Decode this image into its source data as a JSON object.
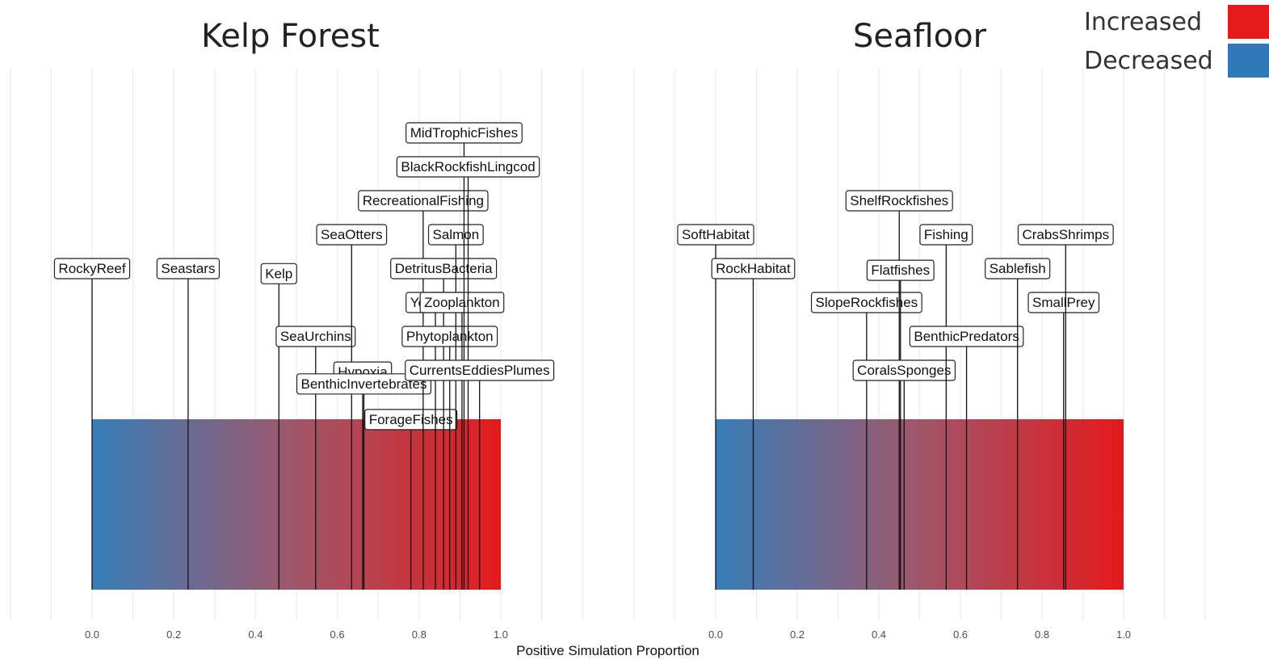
{
  "colors": {
    "increased": "#e41a1c",
    "decreased": "#377eb8",
    "grid": "#ebebeb",
    "line": "#111111"
  },
  "legend": {
    "placement": "top-right",
    "items": [
      {
        "label": "Increased",
        "color": "#e41a1c"
      },
      {
        "label": "Decreased",
        "color": "#2f78b8"
      }
    ]
  },
  "x_axis_title": "Positive Simulation Proportion",
  "chart_data": [
    {
      "type": "bar",
      "title": "Kelp Forest",
      "xlabel": "Positive Simulation Proportion",
      "xlim": [
        0,
        1
      ],
      "ticks": [
        "0.0",
        "0.2",
        "0.4",
        "0.6",
        "0.8",
        "1.0"
      ],
      "grid": true,
      "series": [
        {
          "name": "RockyReef",
          "x": 0.0,
          "level": 4
        },
        {
          "name": "Seastars",
          "x": 0.235,
          "level": 4
        },
        {
          "name": "Kelp",
          "x": 0.457,
          "level": 3.85
        },
        {
          "name": "SeaUrchins",
          "x": 0.547,
          "level": 2
        },
        {
          "name": "SeaOtters",
          "x": 0.635,
          "level": 5
        },
        {
          "name": "Hypoxia",
          "x": 0.662,
          "level": 0.95
        },
        {
          "name": "BenthicInvertebrates",
          "x": 0.665,
          "level": 0.6
        },
        {
          "name": "ForageFishes",
          "x": 0.78,
          "level": -0.45
        },
        {
          "name": "RecreationalFishing",
          "x": 0.81,
          "level": 6
        },
        {
          "name": "YoYFish",
          "x": 0.84,
          "level": 3
        },
        {
          "name": "DetritusBacteria",
          "x": 0.86,
          "level": 4
        },
        {
          "name": "Phytoplankton",
          "x": 0.875,
          "level": 2
        },
        {
          "name": "Salmon",
          "x": 0.89,
          "level": 5
        },
        {
          "name": "Zooplankton",
          "x": 0.905,
          "level": 3
        },
        {
          "name": "MidTrophicFishes",
          "x": 0.91,
          "level": 8
        },
        {
          "name": "BlackRockfishLingcod",
          "x": 0.92,
          "level": 7
        },
        {
          "name": "CurrentsEddiesPlumes",
          "x": 0.948,
          "level": 1
        }
      ]
    },
    {
      "type": "bar",
      "title": "Seafloor",
      "xlabel": "Positive Simulation Proportion",
      "xlim": [
        0,
        1
      ],
      "ticks": [
        "0.0",
        "0.2",
        "0.4",
        "0.6",
        "0.8",
        "1.0"
      ],
      "grid": true,
      "series": [
        {
          "name": "SoftHabitat",
          "x": 0.0,
          "level": 5
        },
        {
          "name": "RockHabitat",
          "x": 0.092,
          "level": 4
        },
        {
          "name": "SlopeRockfishes",
          "x": 0.37,
          "level": 3
        },
        {
          "name": "ShelfRockfishes",
          "x": 0.45,
          "level": 6
        },
        {
          "name": "Flatfishes",
          "x": 0.453,
          "level": 3.95
        },
        {
          "name": "CoralsSponges",
          "x": 0.462,
          "level": 1
        },
        {
          "name": "Fishing",
          "x": 0.565,
          "level": 5
        },
        {
          "name": "BenthicPredators",
          "x": 0.615,
          "level": 2
        },
        {
          "name": "Sablefish",
          "x": 0.74,
          "level": 4
        },
        {
          "name": "SmallPrey",
          "x": 0.853,
          "level": 3
        },
        {
          "name": "CrabsShrimps",
          "x": 0.858,
          "level": 5
        }
      ]
    }
  ]
}
